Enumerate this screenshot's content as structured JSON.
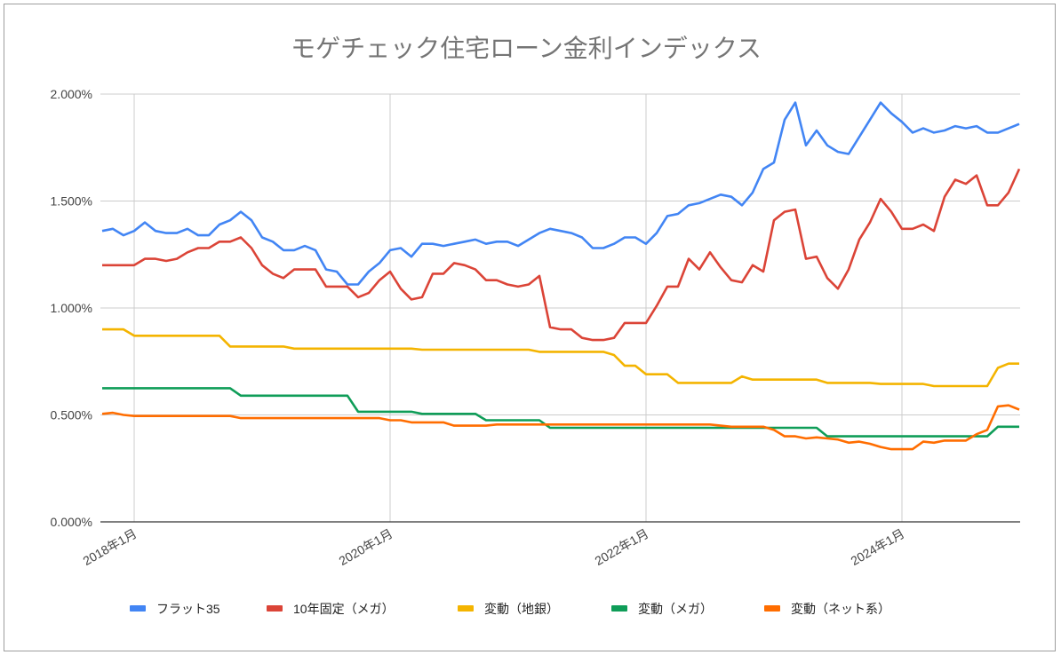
{
  "chart_data": {
    "type": "line",
    "title": "モゲチェック住宅ローン金利インデックス",
    "xlabel": "",
    "ylabel": "",
    "ylim": [
      0,
      2.0
    ],
    "y_ticks": [
      "0.000%",
      "0.500%",
      "1.000%",
      "1.500%",
      "2.000%"
    ],
    "y_tick_values": [
      0,
      0.5,
      1.0,
      1.5,
      2.0
    ],
    "x_ticks": [
      "2018年1月",
      "2020年1月",
      "2022年1月",
      "2024年1月"
    ],
    "x_tick_values": [
      "2018-01",
      "2020-01",
      "2022-01",
      "2024-01"
    ],
    "grid": true,
    "legend": "bottom",
    "x": [
      "2017-10",
      "2017-11",
      "2017-12",
      "2018-01",
      "2018-02",
      "2018-03",
      "2018-04",
      "2018-05",
      "2018-06",
      "2018-07",
      "2018-08",
      "2018-09",
      "2018-10",
      "2018-11",
      "2018-12",
      "2019-01",
      "2019-02",
      "2019-03",
      "2019-04",
      "2019-05",
      "2019-06",
      "2019-07",
      "2019-08",
      "2019-09",
      "2019-10",
      "2019-11",
      "2019-12",
      "2020-01",
      "2020-02",
      "2020-03",
      "2020-04",
      "2020-05",
      "2020-06",
      "2020-07",
      "2020-08",
      "2020-09",
      "2020-10",
      "2020-11",
      "2020-12",
      "2021-01",
      "2021-02",
      "2021-03",
      "2021-04",
      "2021-05",
      "2021-06",
      "2021-07",
      "2021-08",
      "2021-09",
      "2021-10",
      "2021-11",
      "2021-12",
      "2022-01",
      "2022-02",
      "2022-03",
      "2022-04",
      "2022-05",
      "2022-06",
      "2022-07",
      "2022-08",
      "2022-09",
      "2022-10",
      "2022-11",
      "2022-12",
      "2023-01",
      "2023-02",
      "2023-03",
      "2023-04",
      "2023-05",
      "2023-06",
      "2023-07",
      "2023-08",
      "2023-09",
      "2023-10",
      "2023-11",
      "2023-12",
      "2024-01",
      "2024-02",
      "2024-03",
      "2024-04",
      "2024-05",
      "2024-06",
      "2024-07",
      "2024-08",
      "2024-09",
      "2024-10",
      "2024-11",
      "2024-12"
    ],
    "series": [
      {
        "name": "フラット35",
        "color": "#4285f4",
        "values": [
          1.36,
          1.37,
          1.34,
          1.36,
          1.4,
          1.36,
          1.35,
          1.35,
          1.37,
          1.34,
          1.34,
          1.39,
          1.41,
          1.45,
          1.41,
          1.33,
          1.31,
          1.27,
          1.27,
          1.29,
          1.27,
          1.18,
          1.17,
          1.11,
          1.11,
          1.17,
          1.21,
          1.27,
          1.28,
          1.24,
          1.3,
          1.3,
          1.29,
          1.3,
          1.31,
          1.32,
          1.3,
          1.31,
          1.31,
          1.29,
          1.32,
          1.35,
          1.37,
          1.36,
          1.35,
          1.33,
          1.28,
          1.28,
          1.3,
          1.33,
          1.33,
          1.3,
          1.35,
          1.43,
          1.44,
          1.48,
          1.49,
          1.51,
          1.53,
          1.52,
          1.48,
          1.54,
          1.65,
          1.68,
          1.88,
          1.96,
          1.76,
          1.83,
          1.76,
          1.73,
          1.72,
          1.8,
          1.88,
          1.96,
          1.91,
          1.87,
          1.82,
          1.84,
          1.82,
          1.83,
          1.85,
          1.84,
          1.85,
          1.82,
          1.82,
          1.84,
          1.86
        ]
      },
      {
        "name": "10年固定（メガ）",
        "color": "#db4437",
        "values": [
          1.2,
          1.2,
          1.2,
          1.2,
          1.23,
          1.23,
          1.22,
          1.23,
          1.26,
          1.28,
          1.28,
          1.31,
          1.31,
          1.33,
          1.28,
          1.2,
          1.16,
          1.14,
          1.18,
          1.18,
          1.18,
          1.1,
          1.1,
          1.1,
          1.05,
          1.07,
          1.13,
          1.17,
          1.09,
          1.04,
          1.05,
          1.16,
          1.16,
          1.21,
          1.2,
          1.18,
          1.13,
          1.13,
          1.11,
          1.1,
          1.11,
          1.15,
          0.91,
          0.9,
          0.9,
          0.86,
          0.85,
          0.85,
          0.86,
          0.93,
          0.93,
          0.93,
          1.01,
          1.1,
          1.1,
          1.23,
          1.18,
          1.26,
          1.19,
          1.13,
          1.12,
          1.2,
          1.17,
          1.41,
          1.45,
          1.46,
          1.23,
          1.24,
          1.14,
          1.09,
          1.18,
          1.32,
          1.4,
          1.51,
          1.45,
          1.37,
          1.37,
          1.39,
          1.36,
          1.52,
          1.6,
          1.58,
          1.62,
          1.48,
          1.48,
          1.54,
          1.65
        ]
      },
      {
        "name": "変動（地銀）",
        "color": "#f4b400",
        "values": [
          0.9,
          0.9,
          0.9,
          0.87,
          0.87,
          0.87,
          0.87,
          0.87,
          0.87,
          0.87,
          0.87,
          0.87,
          0.82,
          0.82,
          0.82,
          0.82,
          0.82,
          0.82,
          0.81,
          0.81,
          0.81,
          0.81,
          0.81,
          0.81,
          0.81,
          0.81,
          0.81,
          0.81,
          0.81,
          0.81,
          0.805,
          0.805,
          0.805,
          0.805,
          0.805,
          0.805,
          0.805,
          0.805,
          0.805,
          0.805,
          0.805,
          0.795,
          0.795,
          0.795,
          0.795,
          0.795,
          0.795,
          0.795,
          0.78,
          0.73,
          0.73,
          0.69,
          0.69,
          0.69,
          0.65,
          0.65,
          0.65,
          0.65,
          0.65,
          0.65,
          0.68,
          0.665,
          0.665,
          0.665,
          0.665,
          0.665,
          0.665,
          0.665,
          0.65,
          0.65,
          0.65,
          0.65,
          0.65,
          0.645,
          0.645,
          0.645,
          0.645,
          0.645,
          0.635,
          0.635,
          0.635,
          0.635,
          0.635,
          0.635,
          0.72,
          0.74,
          0.74
        ]
      },
      {
        "name": "変動（メガ）",
        "color": "#0f9d58",
        "values": [
          0.625,
          0.625,
          0.625,
          0.625,
          0.625,
          0.625,
          0.625,
          0.625,
          0.625,
          0.625,
          0.625,
          0.625,
          0.625,
          0.59,
          0.59,
          0.59,
          0.59,
          0.59,
          0.59,
          0.59,
          0.59,
          0.59,
          0.59,
          0.59,
          0.515,
          0.515,
          0.515,
          0.515,
          0.515,
          0.515,
          0.505,
          0.505,
          0.505,
          0.505,
          0.505,
          0.505,
          0.475,
          0.475,
          0.475,
          0.475,
          0.475,
          0.475,
          0.44,
          0.44,
          0.44,
          0.44,
          0.44,
          0.44,
          0.44,
          0.44,
          0.44,
          0.44,
          0.44,
          0.44,
          0.44,
          0.44,
          0.44,
          0.44,
          0.44,
          0.44,
          0.44,
          0.44,
          0.44,
          0.44,
          0.44,
          0.44,
          0.44,
          0.44,
          0.4,
          0.4,
          0.4,
          0.4,
          0.4,
          0.4,
          0.4,
          0.4,
          0.4,
          0.4,
          0.4,
          0.4,
          0.4,
          0.4,
          0.4,
          0.4,
          0.445,
          0.445,
          0.445
        ]
      },
      {
        "name": "変動（ネット系）",
        "color": "#ff6d00",
        "values": [
          0.505,
          0.51,
          0.5,
          0.495,
          0.495,
          0.495,
          0.495,
          0.495,
          0.495,
          0.495,
          0.495,
          0.495,
          0.495,
          0.485,
          0.485,
          0.485,
          0.485,
          0.485,
          0.485,
          0.485,
          0.485,
          0.485,
          0.485,
          0.485,
          0.485,
          0.485,
          0.485,
          0.475,
          0.475,
          0.465,
          0.465,
          0.465,
          0.465,
          0.45,
          0.45,
          0.45,
          0.45,
          0.455,
          0.455,
          0.455,
          0.455,
          0.455,
          0.455,
          0.455,
          0.455,
          0.455,
          0.455,
          0.455,
          0.455,
          0.455,
          0.455,
          0.455,
          0.455,
          0.455,
          0.455,
          0.455,
          0.455,
          0.455,
          0.45,
          0.445,
          0.445,
          0.445,
          0.445,
          0.43,
          0.4,
          0.4,
          0.39,
          0.395,
          0.39,
          0.385,
          0.37,
          0.375,
          0.365,
          0.35,
          0.34,
          0.34,
          0.34,
          0.375,
          0.37,
          0.38,
          0.38,
          0.38,
          0.41,
          0.43,
          0.54,
          0.545,
          0.525
        ]
      }
    ]
  }
}
